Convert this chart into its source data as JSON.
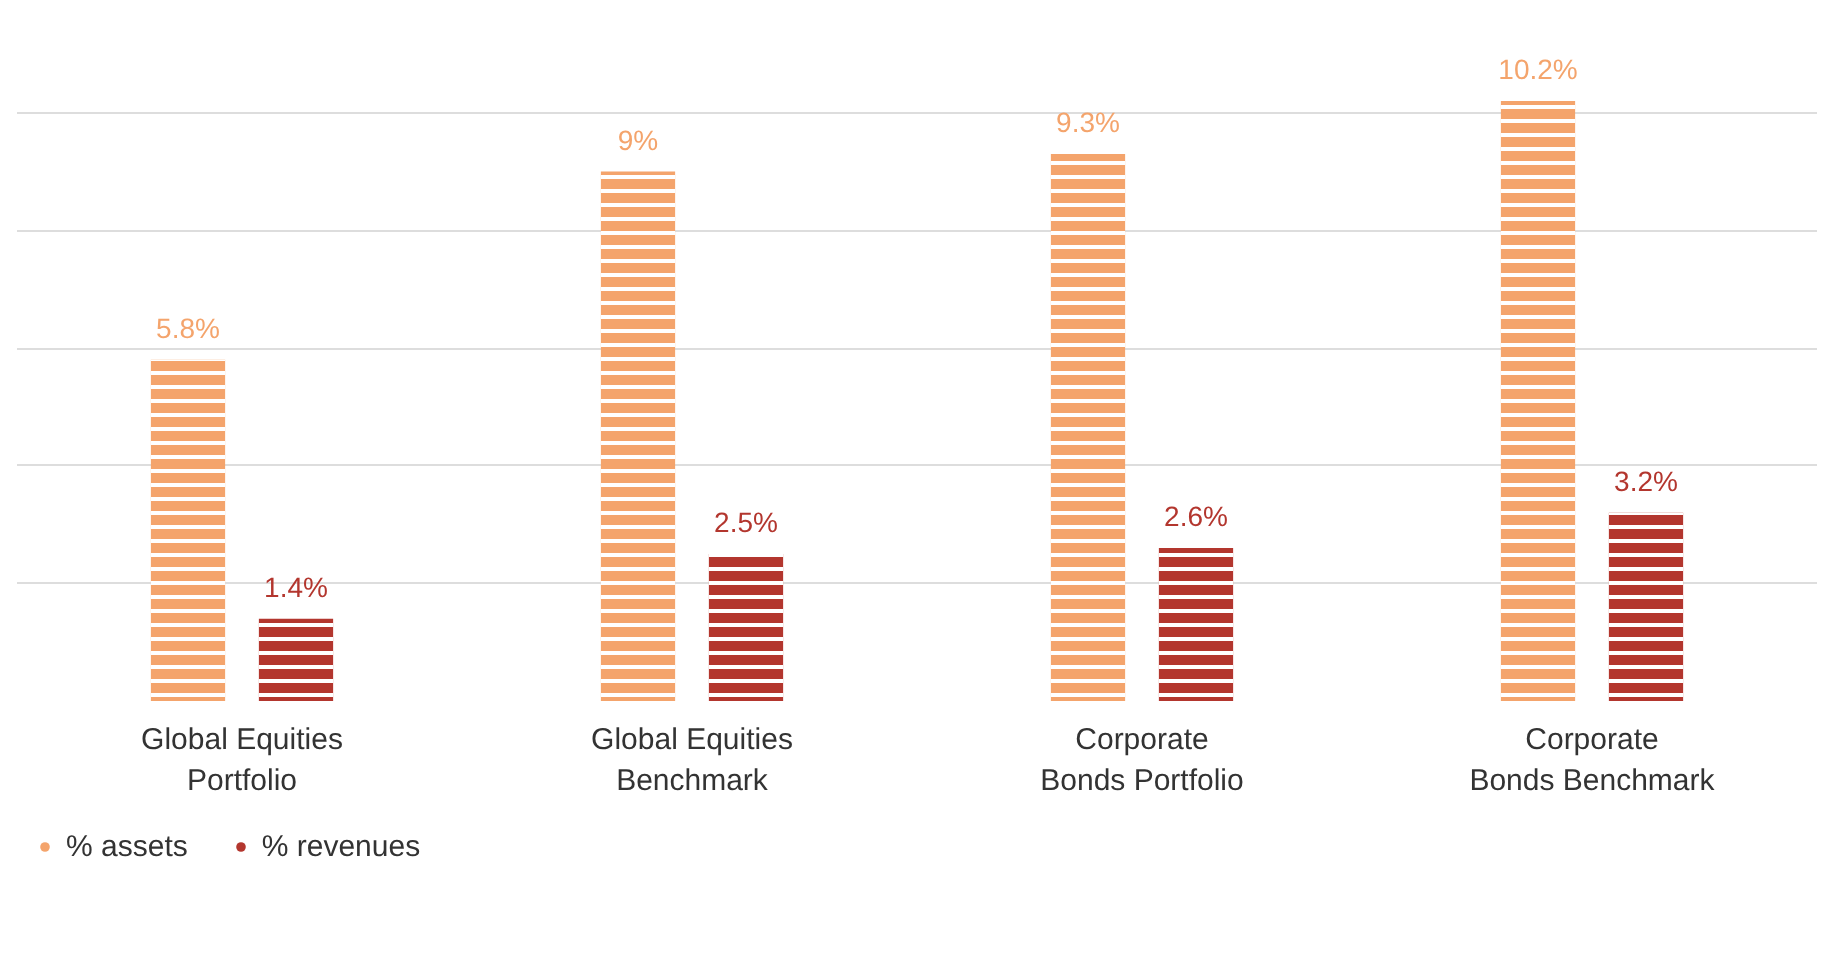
{
  "chart_data": {
    "type": "bar",
    "categories": [
      "Global Equities\nPortfolio",
      "Global Equities\nBenchmark",
      "Corporate\nBonds Portfolio",
      "Corporate\nBonds Benchmark"
    ],
    "series": [
      {
        "name": "% assets",
        "color": "#f4a46c",
        "values": [
          5.8,
          9,
          9.3,
          10.2
        ],
        "value_labels": [
          "5.8%",
          "9%",
          "9.3%",
          "10.2%"
        ]
      },
      {
        "name": "% revenues",
        "color": "#b3362e",
        "values": [
          1.4,
          2.5,
          2.6,
          3.2
        ],
        "value_labels": [
          "1.4%",
          "2.5%",
          "2.6%",
          "3.2%"
        ]
      }
    ],
    "tick_labels": "x",
    "grid": "y",
    "legend": "bottom left"
  }
}
